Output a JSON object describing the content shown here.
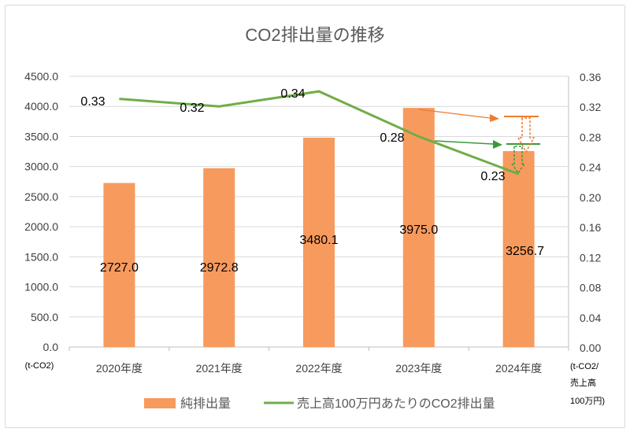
{
  "chart_data": {
    "type": "bar+line",
    "title": "CO2排出量の推移",
    "categories": [
      "2020年度",
      "2021年度",
      "2022年度",
      "2023年度",
      "2024年度"
    ],
    "series": [
      {
        "name": "純排出量",
        "type": "bar",
        "axis": "left",
        "color": "#f79a5e",
        "values": [
          2727.0,
          2972.8,
          3480.1,
          3975.0,
          3256.7
        ],
        "labels": [
          "2727.0",
          "2972.8",
          "3480.1",
          "3975.0",
          "3256.7"
        ]
      },
      {
        "name": "売上高100万円あたりのCO2排出量",
        "type": "line",
        "axis": "right",
        "color": "#70ad47",
        "values": [
          0.33,
          0.32,
          0.34,
          0.28,
          0.23
        ],
        "labels": [
          "0.33",
          "0.32",
          "0.34",
          "0.28",
          "0.23"
        ]
      }
    ],
    "left_axis": {
      "unit": "(t-CO2)",
      "ylim": [
        0,
        4500
      ],
      "ticks": [
        "0.0",
        "500.0",
        "1000.0",
        "1500.0",
        "2000.0",
        "2500.0",
        "3000.0",
        "3500.0",
        "4000.0",
        "4500.0"
      ]
    },
    "right_axis": {
      "unit_lines": [
        "(t-CO2/",
        "売上高",
        "100万円)"
      ],
      "ylim": [
        0,
        0.36
      ],
      "ticks": [
        "0.00",
        "0.04",
        "0.08",
        "0.12",
        "0.16",
        "0.20",
        "0.24",
        "0.28",
        "0.32",
        "0.36"
      ]
    },
    "grid": true,
    "legend": "bottom",
    "annotation_colors": {
      "orange": "#ed7d31",
      "green": "#3a9a3a"
    }
  }
}
